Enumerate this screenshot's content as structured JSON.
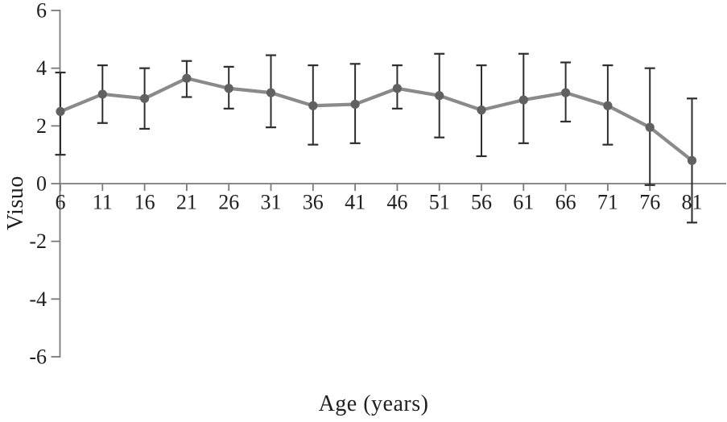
{
  "figure": {
    "background": "#ffffff"
  },
  "chart_data": {
    "type": "line",
    "title": "",
    "xlabel": "Age (years)",
    "ylabel": "Visuo",
    "ylim": [
      -6,
      6
    ],
    "y_ticks": [
      6,
      4,
      2,
      0,
      -2,
      -4,
      -6
    ],
    "x_ticks": [
      6,
      11,
      16,
      21,
      26,
      31,
      36,
      41,
      46,
      51,
      56,
      61,
      66,
      71,
      76,
      81
    ],
    "grid": false,
    "legend": "none",
    "series": [
      {
        "name": "Visuo",
        "x": [
          6,
          11,
          16,
          21,
          26,
          31,
          36,
          41,
          46,
          51,
          56,
          61,
          66,
          71,
          76,
          81
        ],
        "values": [
          2.5,
          3.1,
          2.95,
          3.65,
          3.3,
          3.15,
          2.7,
          2.75,
          3.3,
          3.05,
          2.55,
          2.9,
          3.15,
          2.7,
          1.95,
          0.8
        ],
        "error_upper": [
          3.85,
          4.1,
          4.0,
          4.25,
          4.05,
          4.45,
          4.1,
          4.15,
          4.1,
          4.5,
          4.1,
          4.5,
          4.2,
          4.1,
          4.0,
          2.95
        ],
        "error_lower": [
          1.0,
          2.1,
          1.9,
          3.0,
          2.6,
          1.95,
          1.35,
          1.4,
          2.6,
          1.6,
          0.95,
          1.4,
          2.15,
          1.35,
          -0.05,
          -1.35
        ],
        "marker": "circle"
      }
    ],
    "colors": {
      "line": "#8a8a8a",
      "marker": "#616161",
      "error_bar": "#2e2e2e",
      "axis": "#7a7a7a",
      "text": "#1f1f1f"
    }
  }
}
